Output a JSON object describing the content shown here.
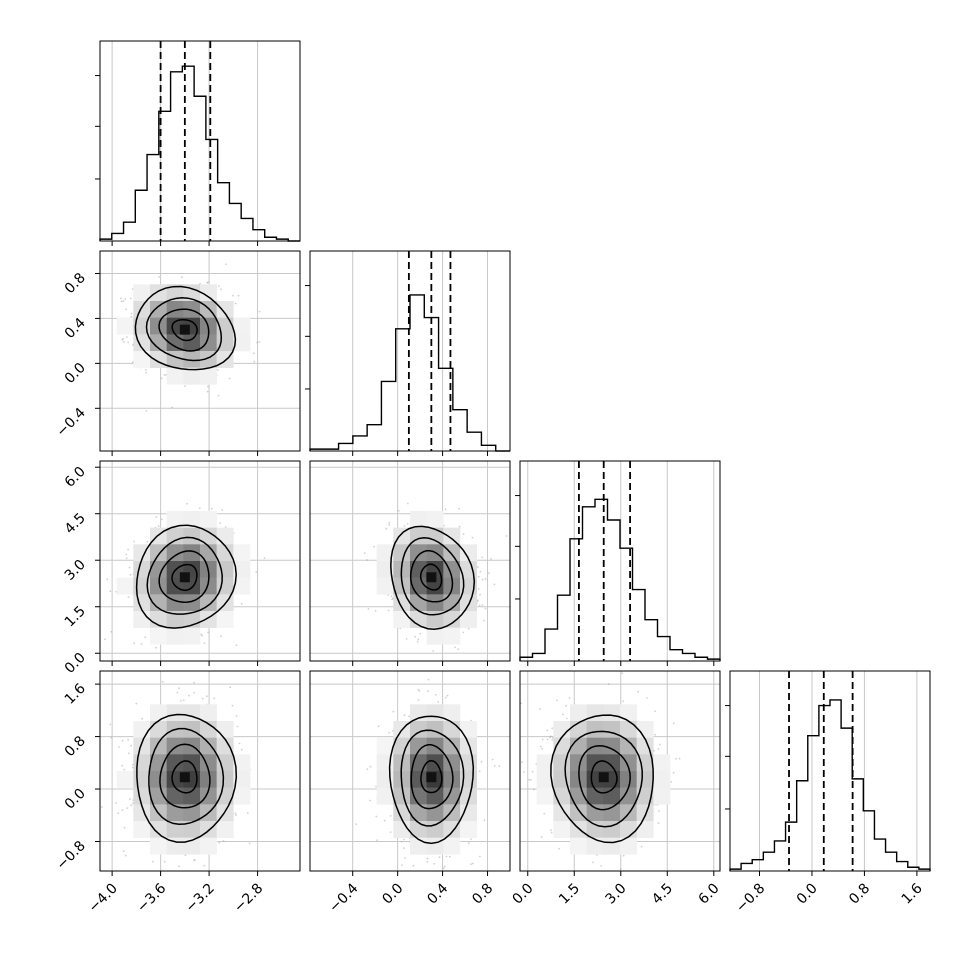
{
  "chart_data": {
    "type": "corner",
    "parameters": [
      {
        "range": [
          -4.1,
          -2.45
        ],
        "ticks": [
          -4.0,
          -3.6,
          -3.2,
          -2.8
        ],
        "tick_labels": [
          "−4.0",
          "−3.6",
          "−3.2",
          "−2.8"
        ],
        "quantiles": [
          -3.6,
          -3.4,
          -3.19
        ]
      },
      {
        "range": [
          -0.78,
          1.0
        ],
        "ticks": [
          -0.4,
          0.0,
          0.4,
          0.8
        ],
        "tick_labels": [
          "−0.4",
          "0.0",
          "0.4",
          "0.8"
        ],
        "quantiles": [
          0.1,
          0.3,
          0.47
        ]
      },
      {
        "range": [
          -0.25,
          6.2
        ],
        "ticks": [
          0.0,
          1.5,
          3.0,
          4.5,
          6.0
        ],
        "tick_labels": [
          "0.0",
          "1.5",
          "3.0",
          "4.5",
          "6.0"
        ],
        "quantiles": [
          1.65,
          2.45,
          3.3
        ]
      },
      {
        "range": [
          -1.25,
          1.8
        ],
        "ticks": [
          -0.8,
          0.0,
          0.8,
          1.6
        ],
        "tick_labels": [
          "−0.8",
          "0.0",
          "0.8",
          "1.6"
        ],
        "quantiles": [
          -0.35,
          0.18,
          0.62
        ]
      }
    ],
    "histograms": [
      [
        0.01,
        0.04,
        0.1,
        0.27,
        0.46,
        0.69,
        0.9,
        0.93,
        0.77,
        0.54,
        0.31,
        0.2,
        0.12,
        0.06,
        0.02,
        0.01,
        0.0
      ],
      [
        0.01,
        0.01,
        0.04,
        0.08,
        0.14,
        0.37,
        0.65,
        0.83,
        0.71,
        0.44,
        0.22,
        0.1,
        0.03,
        0.0
      ],
      [
        0.02,
        0.04,
        0.17,
        0.35,
        0.65,
        0.82,
        0.86,
        0.75,
        0.6,
        0.38,
        0.22,
        0.13,
        0.06,
        0.04,
        0.02,
        0.01
      ],
      [
        0.01,
        0.04,
        0.06,
        0.1,
        0.16,
        0.26,
        0.48,
        0.72,
        0.88,
        0.91,
        0.76,
        0.49,
        0.32,
        0.17,
        0.1,
        0.05,
        0.02,
        0.01
      ]
    ],
    "correlations": {
      "1-0": -0.15,
      "2-0": 0.1,
      "2-1": -0.15,
      "3-0": 0.0,
      "3-1": 0.0,
      "3-2": -0.05
    },
    "contour_levels_sigma": [
      0.5,
      1.0,
      1.5,
      2.0
    ],
    "title": "",
    "axis_labels": []
  }
}
